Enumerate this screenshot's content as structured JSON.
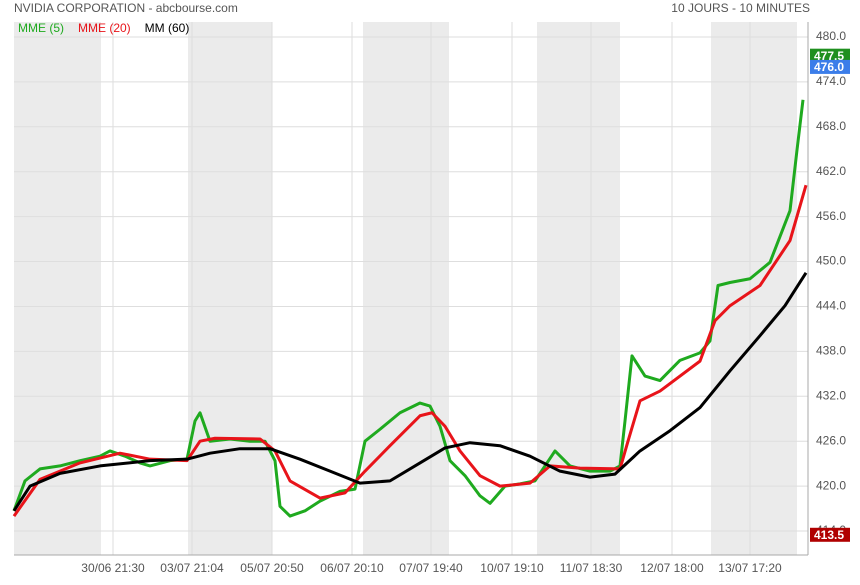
{
  "chart_data": {
    "type": "line",
    "title": "NVIDIA CORPORATION - abcbourse.com",
    "subtitle": "10 JOURS - 10 MINUTES",
    "xlim": [
      0,
      794
    ],
    "xticks": [
      {
        "value": 99,
        "label": "30/06 21:30"
      },
      {
        "value": 178,
        "label": "03/07 21:04"
      },
      {
        "value": 258,
        "label": "05/07 20:50"
      },
      {
        "value": 338,
        "label": "06/07 20:10"
      },
      {
        "value": 417,
        "label": "07/07 19:40"
      },
      {
        "value": 498,
        "label": "10/07 19:10"
      },
      {
        "value": 577,
        "label": "11/07 18:30"
      },
      {
        "value": 658,
        "label": "12/07 18:00"
      },
      {
        "value": 736,
        "label": "13/07 17:20"
      }
    ],
    "ylim": [
      410.8,
      482
    ],
    "yticks": [
      {
        "value": 414,
        "label": "414.0"
      },
      {
        "value": 420,
        "label": "420.0"
      },
      {
        "value": 426,
        "label": "426.0"
      },
      {
        "value": 432,
        "label": "432.0"
      },
      {
        "value": 438,
        "label": "438.0"
      },
      {
        "value": 444,
        "label": "444.0"
      },
      {
        "value": 450,
        "label": "450.0"
      },
      {
        "value": 456,
        "label": "456.0"
      },
      {
        "value": 462,
        "label": "462.0"
      },
      {
        "value": 468,
        "label": "468.0"
      },
      {
        "value": 474,
        "label": "474.0"
      },
      {
        "value": 480,
        "label": "480.0"
      }
    ],
    "grid": true,
    "shaded": [
      [
        0,
        87
      ],
      [
        174,
        258
      ],
      [
        349,
        435
      ],
      [
        523,
        606
      ],
      [
        697,
        783
      ]
    ],
    "series": [
      {
        "name": "MME (5)",
        "color": "#1faa1f",
        "x": [
          0,
          11,
          26,
          46,
          66,
          86,
          96,
          111,
          126,
          136,
          156,
          173,
          181,
          186,
          196,
          216,
          236,
          251,
          261,
          266,
          276,
          291,
          306,
          326,
          341,
          351,
          366,
          386,
          406,
          416,
          426,
          436,
          451,
          466,
          476,
          491,
          506,
          521,
          531,
          541,
          556,
          576,
          596,
          606,
          611,
          618,
          631,
          646,
          666,
          686,
          696,
          704,
          716,
          736,
          756,
          776,
          783,
          789
        ],
        "values": [
          416.7,
          420.7,
          422.3,
          422.7,
          423.4,
          424.0,
          424.7,
          424.0,
          423.1,
          422.7,
          423.4,
          423.6,
          428.7,
          429.8,
          426.0,
          426.3,
          426.0,
          426.0,
          423.4,
          417.3,
          416.0,
          416.7,
          418.0,
          419.3,
          419.6,
          426.0,
          427.6,
          429.8,
          431.1,
          430.7,
          428.0,
          423.4,
          421.4,
          418.7,
          417.7,
          420.0,
          420.3,
          420.7,
          422.7,
          424.7,
          422.7,
          422.0,
          422.0,
          422.7,
          428.7,
          437.4,
          434.7,
          434.1,
          436.8,
          437.8,
          439.4,
          446.8,
          447.2,
          447.7,
          449.9,
          456.8,
          464.9,
          471.6
        ]
      },
      {
        "name": "MME (20)",
        "color": "#e8141a",
        "x": [
          0,
          26,
          66,
          106,
          136,
          173,
          186,
          201,
          246,
          261,
          276,
          306,
          331,
          351,
          376,
          406,
          418,
          431,
          446,
          466,
          486,
          516,
          536,
          566,
          606,
          614,
          626,
          646,
          686,
          701,
          716,
          746,
          776,
          792
        ],
        "values": [
          416.0,
          420.9,
          423.1,
          424.4,
          423.6,
          423.4,
          426.0,
          426.4,
          426.3,
          424.7,
          420.7,
          418.4,
          419.1,
          422.0,
          425.4,
          429.4,
          429.8,
          428.0,
          424.7,
          421.4,
          420.0,
          420.4,
          422.7,
          422.4,
          422.3,
          426.0,
          431.4,
          432.7,
          436.7,
          442.1,
          444.1,
          446.8,
          452.8,
          460.2
        ]
      },
      {
        "name": "MM (60)",
        "color": "#000000",
        "x": [
          0,
          16,
          46,
          86,
          136,
          173,
          196,
          226,
          256,
          286,
          316,
          346,
          376,
          406,
          431,
          456,
          486,
          516,
          546,
          576,
          601,
          626,
          656,
          686,
          716,
          746,
          771,
          792
        ],
        "values": [
          416.7,
          420.0,
          421.7,
          422.7,
          423.4,
          423.6,
          424.4,
          425.0,
          425.0,
          423.6,
          422.0,
          420.4,
          420.7,
          423.1,
          425.1,
          425.8,
          425.4,
          424.0,
          422.0,
          421.2,
          421.6,
          424.7,
          427.4,
          430.5,
          435.4,
          440.1,
          444.1,
          448.5
        ]
      }
    ],
    "price_tags": [
      {
        "value": 477.5,
        "color": "#1f8f1f"
      },
      {
        "value": 476,
        "label": "476.0",
        "color": "#3b7de9"
      },
      {
        "value": 413.5,
        "color": "#b00000"
      }
    ]
  }
}
